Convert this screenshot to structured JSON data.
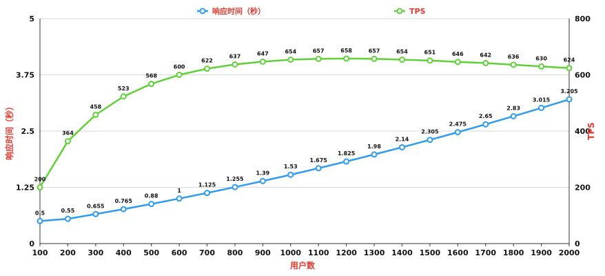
{
  "chart_data": {
    "type": "line",
    "x": [
      100,
      200,
      300,
      400,
      500,
      600,
      700,
      800,
      900,
      1000,
      1100,
      1200,
      1300,
      1400,
      1500,
      1600,
      1700,
      1800,
      1900,
      2000
    ],
    "series": [
      {
        "name": "响应时间（秒）",
        "axis": "left",
        "values": [
          0.5,
          0.55,
          0.655,
          0.765,
          0.88,
          1,
          1.125,
          1.255,
          1.39,
          1.53,
          1.675,
          1.825,
          1.98,
          2.14,
          2.305,
          2.475,
          2.65,
          2.83,
          3.015,
          3.205
        ],
        "labels": [
          "0.5",
          "0.55",
          "0.655",
          "0.765",
          "0.88",
          "1",
          "1.125",
          "1.255",
          "1.39",
          "1.53",
          "1.675",
          "1.825",
          "1.98",
          "2.14",
          "2.305",
          "2.475",
          "2.65",
          "2.83",
          "3.015",
          "3.205"
        ],
        "color": "#2d9bf0"
      },
      {
        "name": "TPS",
        "axis": "right",
        "values": [
          200,
          364,
          458,
          523,
          568,
          600,
          622,
          637,
          647,
          654,
          657,
          658,
          657,
          654,
          651,
          646,
          642,
          636,
          630,
          624
        ],
        "labels": [
          "200",
          "364",
          "458",
          "523",
          "568",
          "600",
          "622",
          "637",
          "647",
          "654",
          "657",
          "658",
          "657",
          "654",
          "651",
          "646",
          "642",
          "636",
          "630",
          "624"
        ],
        "color": "#5ed136"
      }
    ],
    "xlabel": "用户数",
    "ylabel_left": "响应时间（秒）",
    "ylabel_right": "TPS",
    "ylim_left": [
      0,
      5
    ],
    "ylim_right": [
      0,
      800
    ],
    "xticks": [
      "100",
      "200",
      "300",
      "400",
      "500",
      "600",
      "700",
      "800",
      "900",
      "1000",
      "1100",
      "1200",
      "1300",
      "1400",
      "1500",
      "1600",
      "1700",
      "1800",
      "1900",
      "2000"
    ],
    "yticks_left": [
      "0",
      "1.25",
      "2.5",
      "3.75",
      "5"
    ],
    "yticks_right": [
      "0",
      "200",
      "400",
      "600",
      "800"
    ],
    "grid": true,
    "legend_position": "top"
  },
  "colors": {
    "axis_title": "#e53a2f",
    "grid": "#d9d9d9",
    "axis": "#333333"
  }
}
